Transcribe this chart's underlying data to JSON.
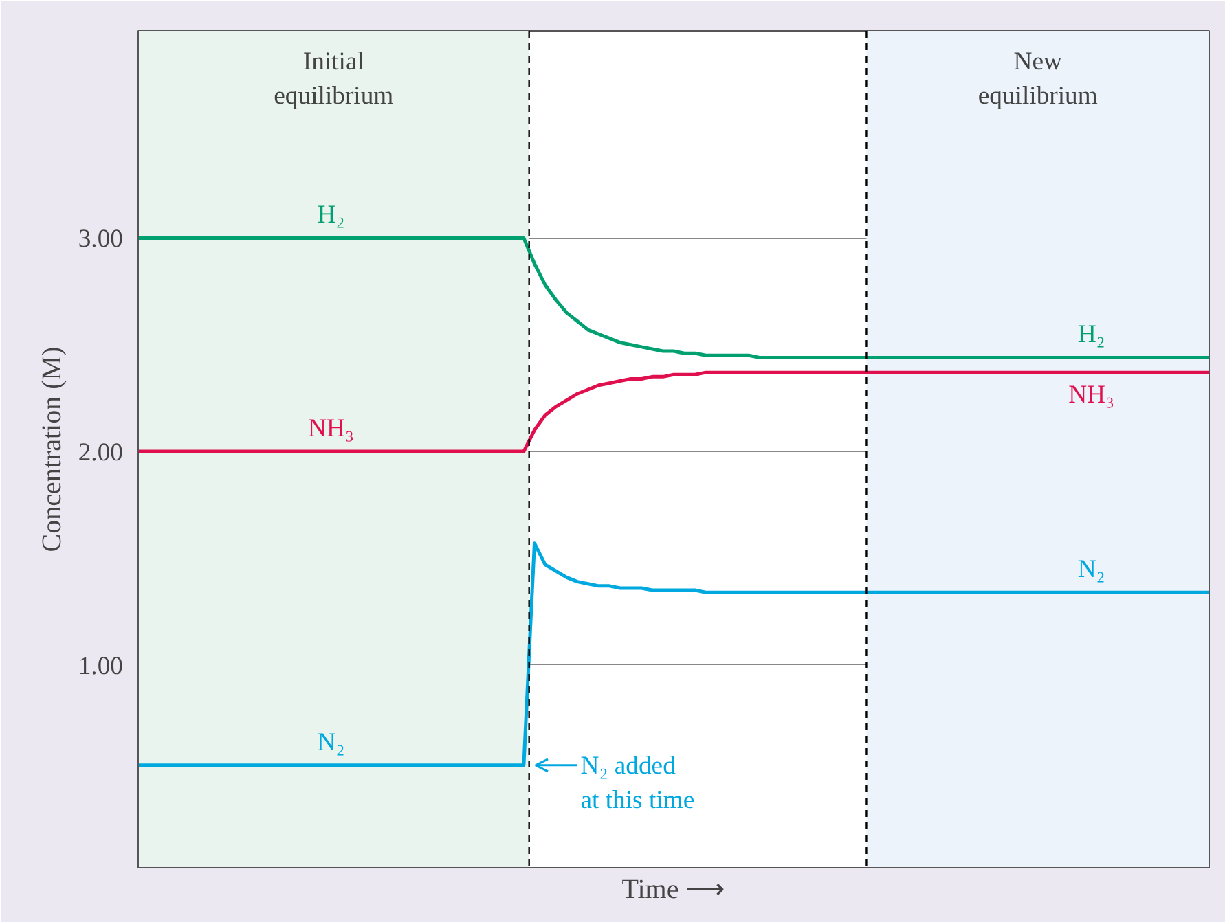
{
  "chart_data": {
    "type": "line",
    "xlabel": "Time ⟶",
    "ylabel": "Concentration (M)",
    "categories": [
      null,
      null,
      null,
      null,
      null,
      null,
      null,
      null,
      null,
      null,
      null,
      null,
      null,
      null,
      null,
      null,
      null,
      null,
      null,
      null,
      null,
      null,
      null,
      null,
      null,
      null,
      null,
      null,
      null,
      null,
      null,
      null,
      null,
      null,
      null,
      null,
      null,
      null,
      null,
      null,
      null,
      null,
      null,
      null,
      null,
      null,
      null,
      null,
      null,
      null,
      null,
      null,
      null,
      null,
      null,
      null,
      null,
      null,
      null,
      null,
      null,
      null,
      null,
      null,
      null,
      null,
      null,
      null,
      null,
      null,
      null,
      null,
      null,
      null,
      null,
      null,
      null,
      null,
      null,
      null,
      null,
      null,
      null,
      null,
      null,
      null,
      null,
      null,
      null,
      null,
      null,
      null,
      null,
      null,
      null,
      null,
      null,
      null,
      null,
      null,
      null
    ],
    "ylim": [
      0.05,
      3.97
    ],
    "yticks": [
      {
        "value": 1,
        "label": "1.00"
      },
      {
        "value": 2,
        "label": "2.00"
      },
      {
        "value": 3,
        "label": "3.00"
      }
    ],
    "tick_labels": "y",
    "grid": "y",
    "legend": false,
    "series": [
      {
        "name": "H₂",
        "color": "#00a070",
        "values": [
          3,
          3,
          3,
          3,
          3,
          3,
          3,
          3,
          3,
          3,
          3,
          3,
          3,
          3,
          3,
          3,
          3,
          3,
          3,
          3,
          3,
          3,
          3,
          3,
          3,
          3,
          3,
          3,
          3,
          3,
          3,
          3,
          3,
          3,
          3,
          3,
          3,
          2.88,
          2.78,
          2.71,
          2.65,
          2.61,
          2.57,
          2.55,
          2.53,
          2.51,
          2.5,
          2.49,
          2.48,
          2.47,
          2.47,
          2.46,
          2.46,
          2.45,
          2.45,
          2.45,
          2.45,
          2.45,
          2.44,
          2.44,
          2.44,
          2.44,
          2.44,
          2.44,
          2.44,
          2.44,
          2.44,
          2.44,
          2.44,
          2.44,
          2.44,
          2.44,
          2.44,
          2.44,
          2.44,
          2.44,
          2.44,
          2.44,
          2.44,
          2.44,
          2.44,
          2.44,
          2.44,
          2.44,
          2.44,
          2.44,
          2.44,
          2.44,
          2.44,
          2.44,
          2.44,
          2.44,
          2.44,
          2.44,
          2.44,
          2.44,
          2.44,
          2.44,
          2.44,
          2.44,
          2.44
        ]
      },
      {
        "name": "NH₃",
        "color": "#e0104f",
        "values": [
          2,
          2,
          2,
          2,
          2,
          2,
          2,
          2,
          2,
          2,
          2,
          2,
          2,
          2,
          2,
          2,
          2,
          2,
          2,
          2,
          2,
          2,
          2,
          2,
          2,
          2,
          2,
          2,
          2,
          2,
          2,
          2,
          2,
          2,
          2,
          2,
          2,
          2.1,
          2.17,
          2.21,
          2.24,
          2.27,
          2.29,
          2.31,
          2.32,
          2.33,
          2.34,
          2.34,
          2.35,
          2.35,
          2.36,
          2.36,
          2.36,
          2.37,
          2.37,
          2.37,
          2.37,
          2.37,
          2.37,
          2.37,
          2.37,
          2.37,
          2.37,
          2.37,
          2.37,
          2.37,
          2.37,
          2.37,
          2.37,
          2.37,
          2.37,
          2.37,
          2.37,
          2.37,
          2.37,
          2.37,
          2.37,
          2.37,
          2.37,
          2.37,
          2.37,
          2.37,
          2.37,
          2.37,
          2.37,
          2.37,
          2.37,
          2.37,
          2.37,
          2.37,
          2.37,
          2.37,
          2.37,
          2.37,
          2.37,
          2.37,
          2.37,
          2.37,
          2.37,
          2.37,
          2.37
        ]
      },
      {
        "name": "N₂",
        "color": "#00a8e0",
        "values": [
          0.53,
          0.53,
          0.53,
          0.53,
          0.53,
          0.53,
          0.53,
          0.53,
          0.53,
          0.53,
          0.53,
          0.53,
          0.53,
          0.53,
          0.53,
          0.53,
          0.53,
          0.53,
          0.53,
          0.53,
          0.53,
          0.53,
          0.53,
          0.53,
          0.53,
          0.53,
          0.53,
          0.53,
          0.53,
          0.53,
          0.53,
          0.53,
          0.53,
          0.53,
          0.53,
          0.53,
          0.53,
          1.57,
          1.47,
          1.44,
          1.41,
          1.39,
          1.38,
          1.37,
          1.37,
          1.36,
          1.36,
          1.36,
          1.35,
          1.35,
          1.35,
          1.35,
          1.35,
          1.34,
          1.34,
          1.34,
          1.34,
          1.34,
          1.34,
          1.34,
          1.34,
          1.34,
          1.34,
          1.34,
          1.34,
          1.34,
          1.34,
          1.34,
          1.34,
          1.34,
          1.34,
          1.34,
          1.34,
          1.34,
          1.34,
          1.34,
          1.34,
          1.34,
          1.34,
          1.34,
          1.34,
          1.34,
          1.34,
          1.34,
          1.34,
          1.34,
          1.34,
          1.34,
          1.34,
          1.34,
          1.34,
          1.34,
          1.34,
          1.34,
          1.34,
          1.34,
          1.34,
          1.34,
          1.34,
          1.34,
          1.34
        ]
      }
    ],
    "line_style": "solid",
    "marker": "none",
    "annotations": [
      "Initial\nequilibrium",
      "New\nequilibrium",
      "N₂ added\nat this time"
    ]
  }
}
